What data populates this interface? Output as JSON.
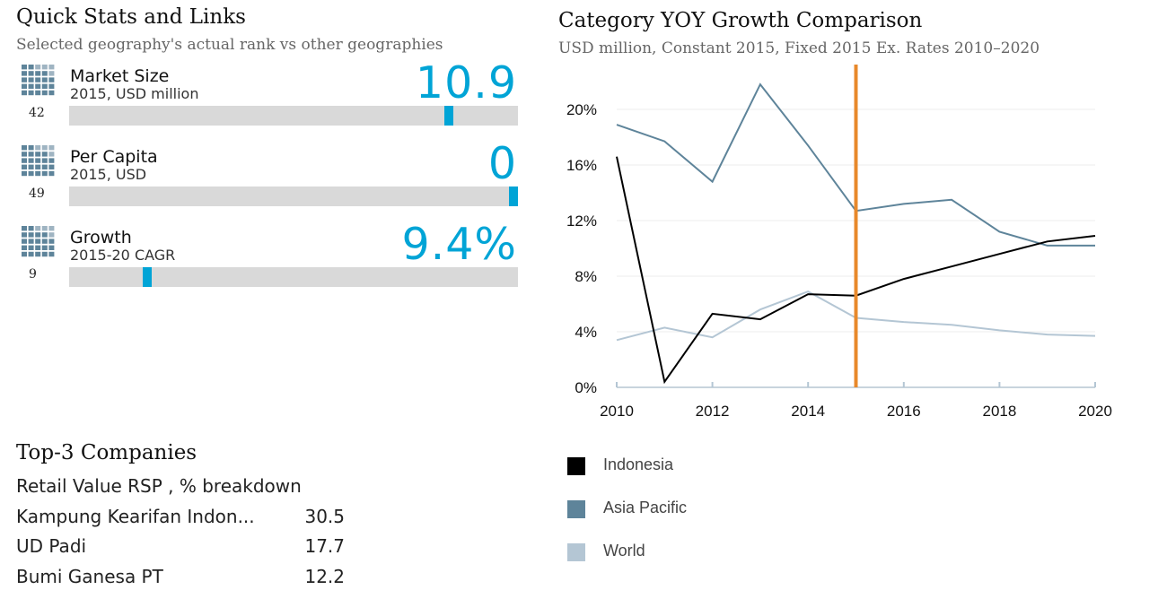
{
  "quick_stats": {
    "title": "Quick Stats and Links",
    "subtitle": "Selected geography's actual rank vs other geographies",
    "items": [
      {
        "label": "Market Size",
        "sub": "2015, USD million",
        "value": "10.9",
        "rank": "42",
        "marker_fraction": 0.846
      },
      {
        "label": "Per Capita",
        "sub": "2015, USD",
        "value": "0",
        "rank": "49",
        "marker_fraction": 0.99
      },
      {
        "label": "Growth",
        "sub": "2015-20 CAGR",
        "value": "9.4%",
        "rank": "9",
        "marker_fraction": 0.174
      }
    ]
  },
  "top_companies": {
    "title": "Top-3 Companies",
    "subtitle": "Retail Value RSP , % breakdown",
    "rows": [
      {
        "name": "Kampung Kearifan Indon...",
        "value": "30.5"
      },
      {
        "name": "UD Padi",
        "value": "17.7"
      },
      {
        "name": "Bumi Ganesa PT",
        "value": "12.2"
      }
    ]
  },
  "chart_title": "Category YOY Growth Comparison",
  "chart_subtitle": "USD million, Constant 2015, Fixed 2015 Ex. Rates  2010–2020",
  "colors": {
    "accent": "#00a4d6",
    "marker_line": "#e8892b",
    "indonesia": "#000000",
    "asia_pacific": "#5e849a",
    "world": "#b4c6d4",
    "track": "#d9d9d9"
  },
  "chart_data": {
    "type": "line",
    "title": "Category YOY Growth Comparison",
    "subtitle": "USD million, Constant 2015, Fixed 2015 Ex. Rates  2010–2020",
    "x": [
      2010,
      2011,
      2012,
      2013,
      2014,
      2015,
      2016,
      2017,
      2018,
      2019,
      2020
    ],
    "x_ticks": [
      "2010",
      "2012",
      "2014",
      "2016",
      "2018",
      "2020"
    ],
    "y_ticks": [
      "0%",
      "4%",
      "8%",
      "12%",
      "16%",
      "20%"
    ],
    "ylim": [
      0,
      20
    ],
    "xlim": [
      2010,
      2020
    ],
    "vertical_marker_x": 2015,
    "grid": "horizontal",
    "legend_position": "bottom-left",
    "series": [
      {
        "name": "Indonesia",
        "color": "#000000",
        "values": [
          16.6,
          0.4,
          5.3,
          4.9,
          6.7,
          6.6,
          7.8,
          8.7,
          9.6,
          10.5,
          10.9
        ]
      },
      {
        "name": "Asia Pacific",
        "color": "#5e849a",
        "values": [
          18.9,
          17.7,
          14.8,
          21.8,
          17.4,
          12.7,
          13.2,
          13.5,
          11.2,
          10.2,
          10.2
        ]
      },
      {
        "name": "World",
        "color": "#b4c6d4",
        "values": [
          3.4,
          4.3,
          3.6,
          5.6,
          6.9,
          5.0,
          4.7,
          4.5,
          4.1,
          3.8,
          3.7
        ]
      }
    ]
  }
}
